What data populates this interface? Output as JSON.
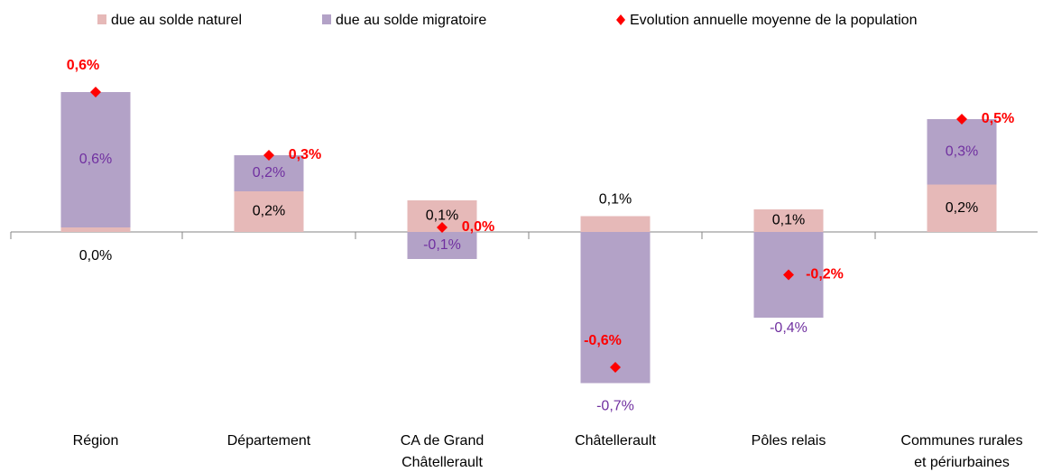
{
  "chart_data": {
    "type": "bar",
    "stacked": true,
    "categories": [
      [
        "Région"
      ],
      [
        "Département"
      ],
      [
        "CA de Grand",
        "Châtellerault"
      ],
      [
        "Châtellerault"
      ],
      [
        "Pôles relais"
      ],
      [
        "Communes rurales",
        "et périurbaines"
      ]
    ],
    "series": [
      {
        "name": "due au solde naturel",
        "color": "#e6b9b8",
        "label_color": "#000000",
        "values": [
          0.02,
          0.18,
          0.14,
          0.07,
          0.1,
          0.21
        ],
        "value_labels": [
          "0,0%",
          "0,2%",
          "0,1%",
          "0,1%",
          "0,1%",
          "0,2%"
        ]
      },
      {
        "name": "due au solde migratoire",
        "color": "#b3a2c7",
        "label_color": "#7030a0",
        "values": [
          0.6,
          0.16,
          -0.12,
          -0.67,
          -0.38,
          0.29
        ],
        "value_labels": [
          "0,6%",
          "0,2%",
          "-0,1%",
          "-0,7%",
          "-0,4%",
          "0,3%"
        ]
      },
      {
        "name": "Evolution annuelle moyenne de la population",
        "type": "scatter",
        "marker": "diamond",
        "color": "#ff0000",
        "label_color": "#ff0000",
        "values": [
          0.62,
          0.34,
          0.02,
          -0.6,
          -0.19,
          0.5
        ],
        "value_labels": [
          "0,6%",
          "0,3%",
          "0,0%",
          "-0,6%",
          "-0,2%",
          "0,5%"
        ]
      }
    ],
    "ylim": [
      -0.75,
      0.72
    ],
    "legend": "top"
  }
}
